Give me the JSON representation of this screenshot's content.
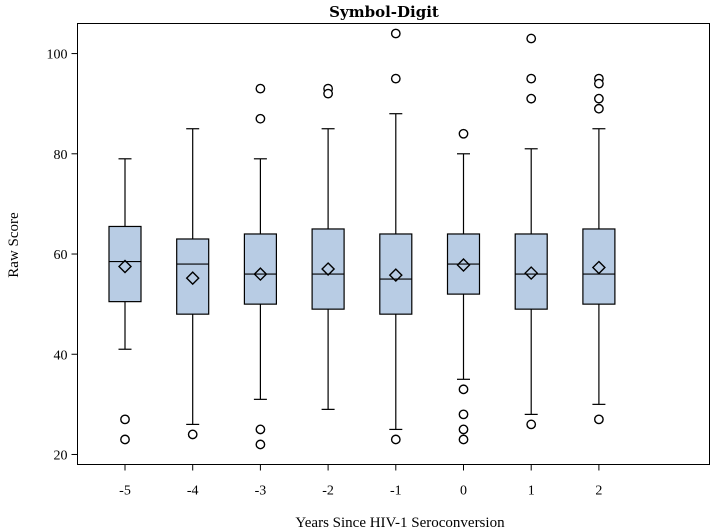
{
  "chart_data": {
    "type": "boxplot",
    "title": "Symbol-Digit",
    "xlabel": "Years Since HIV-1 Seroconversion",
    "ylabel": "Raw Score",
    "ylim": [
      18,
      106
    ],
    "yticks": [
      20,
      40,
      60,
      80,
      100
    ],
    "grid": false,
    "colors": {
      "box_fill": "#b8cce4",
      "stroke": "#000000"
    },
    "groups": [
      {
        "label": "-5",
        "min": 41,
        "q1": 50.5,
        "median": 58.5,
        "q3": 65.5,
        "max": 79,
        "mean": 57.5,
        "outliers": [
          27,
          23
        ]
      },
      {
        "label": "-4",
        "min": 26,
        "q1": 48,
        "median": 58,
        "q3": 63,
        "max": 85,
        "mean": 55.2,
        "outliers": [
          24
        ]
      },
      {
        "label": "-3",
        "min": 31,
        "q1": 50,
        "median": 56,
        "q3": 64,
        "max": 79,
        "mean": 56,
        "outliers": [
          93,
          87,
          25,
          22
        ]
      },
      {
        "label": "-2",
        "min": 29,
        "q1": 49,
        "median": 56,
        "q3": 65,
        "max": 85,
        "mean": 57,
        "outliers": [
          93,
          92
        ]
      },
      {
        "label": "-1",
        "min": 25,
        "q1": 48,
        "median": 55,
        "q3": 64,
        "max": 88,
        "mean": 55.8,
        "outliers": [
          104,
          95,
          23
        ]
      },
      {
        "label": "0",
        "min": 35,
        "q1": 52,
        "median": 58,
        "q3": 64,
        "max": 80,
        "mean": 57.8,
        "outliers": [
          84,
          33,
          28,
          25,
          23
        ]
      },
      {
        "label": "1",
        "min": 28,
        "q1": 49,
        "median": 56,
        "q3": 64,
        "max": 81,
        "mean": 56.2,
        "outliers": [
          103,
          95,
          91,
          26
        ]
      },
      {
        "label": "2",
        "min": 30,
        "q1": 50,
        "median": 56,
        "q3": 65,
        "max": 85,
        "mean": 57.3,
        "outliers": [
          95,
          94,
          91,
          89,
          27
        ]
      }
    ]
  }
}
